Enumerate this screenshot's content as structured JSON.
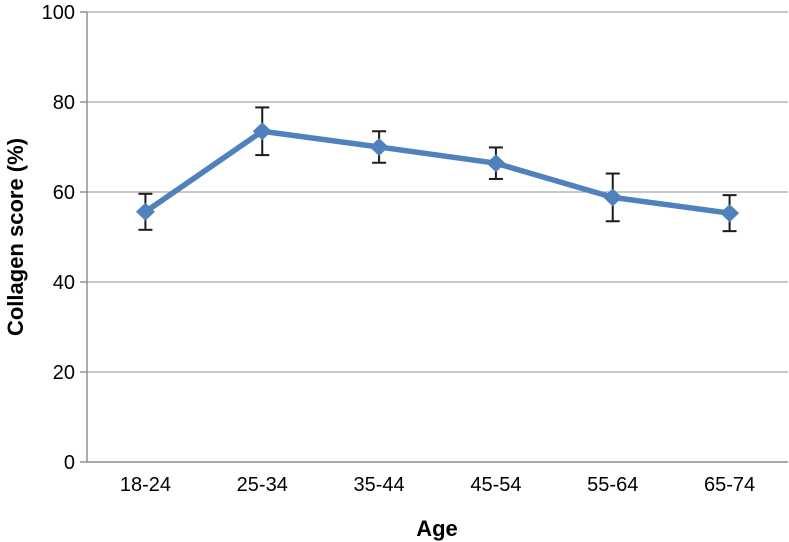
{
  "chart_data": {
    "type": "line",
    "title": "",
    "xlabel": "Age",
    "ylabel": "Collagen score (%)",
    "categories": [
      "18-24",
      "25-34",
      "35-44",
      "45-54",
      "55-64",
      "65-74"
    ],
    "series": [
      {
        "name": "Collagen score",
        "values": [
          55.6,
          73.5,
          70.0,
          66.4,
          58.8,
          55.3
        ],
        "error_bars": [
          4.0,
          5.3,
          3.5,
          3.5,
          5.3,
          4.0
        ]
      }
    ],
    "ylim": [
      0,
      100
    ],
    "yticks": [
      0,
      20,
      40,
      60,
      80,
      100
    ],
    "grid": "horizontal",
    "legend": "none",
    "marker": "diamond",
    "colors": {
      "series": "#4F81BD",
      "error_bar": "#1a1a1a",
      "gridline": "#A8A8A8",
      "axis": "#8A8A8A",
      "text": "#000000"
    }
  }
}
